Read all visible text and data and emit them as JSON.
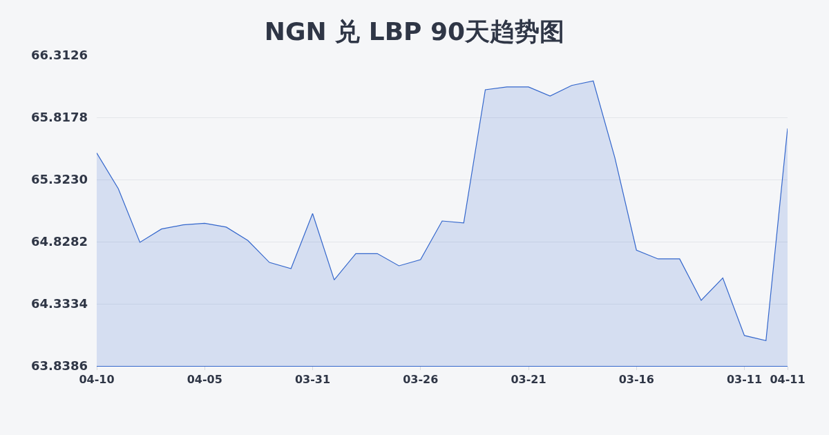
{
  "chart_data": {
    "type": "area",
    "title": "NGN 兑 LBP 90天趋势图",
    "categories": [
      "04-10",
      null,
      null,
      null,
      null,
      "04-05",
      null,
      null,
      null,
      null,
      "03-31",
      null,
      null,
      null,
      null,
      "03-26",
      null,
      null,
      null,
      null,
      "03-21",
      null,
      null,
      null,
      null,
      "03-16",
      null,
      null,
      null,
      null,
      "03-11",
      null,
      "04-11"
    ],
    "series": [
      {
        "color": "#3366cc",
        "values": [
          65.534,
          65.25,
          64.823,
          64.929,
          64.962,
          64.975,
          64.944,
          64.838,
          64.663,
          64.614,
          65.052,
          64.524,
          64.733,
          64.733,
          64.636,
          64.685,
          64.993,
          64.978,
          66.038,
          66.06,
          66.06,
          65.988,
          66.072,
          66.108,
          65.497,
          64.761,
          64.691,
          64.691,
          64.361,
          64.539,
          64.081,
          64.04,
          65.73
        ]
      }
    ],
    "ylim": [
      63.8386,
      66.3126
    ],
    "yticks": [
      63.8386,
      64.3334,
      64.8282,
      {
        "value": 65.323,
        "label": "65.3230"
      },
      65.8178,
      66.3126
    ],
    "grid": "y"
  }
}
